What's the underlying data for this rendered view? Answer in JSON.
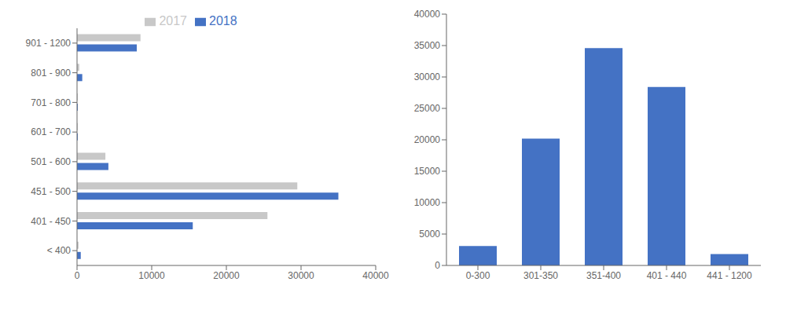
{
  "chart_data": [
    {
      "type": "bar",
      "orientation": "horizontal",
      "categories": [
        "< 400",
        "401 - 450",
        "451 - 500",
        "501 - 600",
        "601 - 700",
        "701 - 800",
        "801 - 900",
        "901 - 1200"
      ],
      "series": [
        {
          "name": "2017",
          "color": "#c8c8c8",
          "values": [
            200,
            25500,
            29500,
            3800,
            100,
            100,
            300,
            8500
          ]
        },
        {
          "name": "2018",
          "color": "#4472c4",
          "values": [
            500,
            15500,
            35000,
            4200,
            100,
            100,
            700,
            8000
          ]
        }
      ],
      "xlim": [
        0,
        40000
      ],
      "xticks": [
        0,
        10000,
        20000,
        30000,
        40000
      ],
      "grid": false,
      "legend": "top"
    },
    {
      "type": "bar",
      "categories": [
        "0-300",
        "301-350",
        "351-400",
        "401 - 440",
        "441 - 1200"
      ],
      "values": [
        3100,
        20200,
        34600,
        28400,
        1800
      ],
      "color": "#4472c4",
      "ylim": [
        0,
        40000
      ],
      "yticks": [
        0,
        5000,
        10000,
        15000,
        20000,
        25000,
        30000,
        35000,
        40000
      ],
      "grid": false
    }
  ]
}
